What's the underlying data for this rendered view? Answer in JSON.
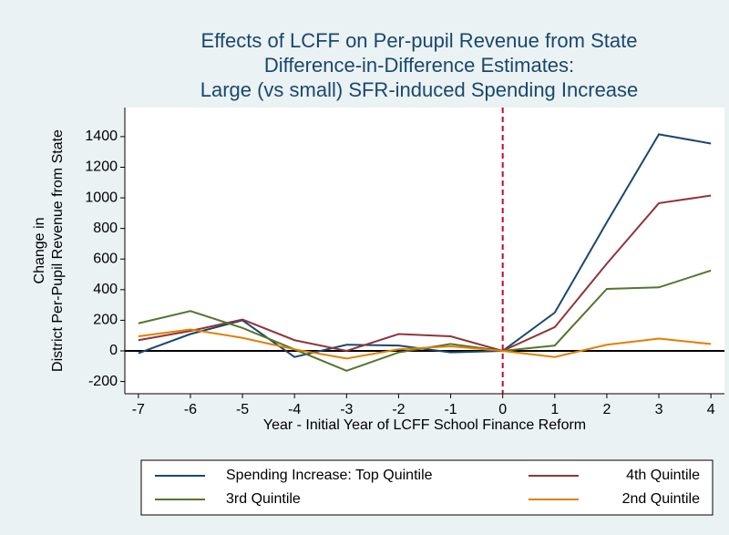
{
  "chart_data": {
    "type": "line",
    "title": [
      "Effects of LCFF on Per-pupil Revenue from State",
      "Difference-in-Difference Estimates:",
      "Large (vs small) SFR-induced Spending Increase"
    ],
    "xlabel": "Year - Initial Year of LCFF School Finance Reform",
    "ylabel": [
      "Change in",
      "District Per-Pupil Revenue from State"
    ],
    "x": [
      -7,
      -6,
      -5,
      -4,
      -3,
      -2,
      -1,
      0,
      1,
      2,
      3,
      4
    ],
    "series": [
      {
        "name": "Spending Increase: Top Quintile",
        "color": "#1a476f",
        "values": [
          -15,
          110,
          200,
          -40,
          40,
          35,
          -10,
          0,
          250,
          840,
          1415,
          1355
        ]
      },
      {
        "name": "4th Quintile",
        "color": "#90353b",
        "values": [
          70,
          130,
          205,
          70,
          0,
          110,
          95,
          0,
          155,
          570,
          965,
          1015
        ]
      },
      {
        "name": "3rd Quintile",
        "color": "#55752f",
        "values": [
          180,
          260,
          150,
          10,
          -130,
          -10,
          45,
          0,
          35,
          405,
          415,
          525
        ]
      },
      {
        "name": "2nd Quintile",
        "color": "#e37e00",
        "values": [
          95,
          140,
          85,
          10,
          -50,
          10,
          30,
          0,
          -40,
          40,
          80,
          45
        ]
      }
    ],
    "xlim": [
      -7.26,
      4.26
    ],
    "xticks": [
      -7,
      -6,
      -5,
      -4,
      -3,
      -2,
      -1,
      0,
      1,
      2,
      3,
      4
    ],
    "ylim": [
      -280,
      1590
    ],
    "yticks": [
      -200,
      0,
      200,
      400,
      600,
      800,
      1000,
      1200,
      1400
    ],
    "hline": 0,
    "vline": 0
  }
}
